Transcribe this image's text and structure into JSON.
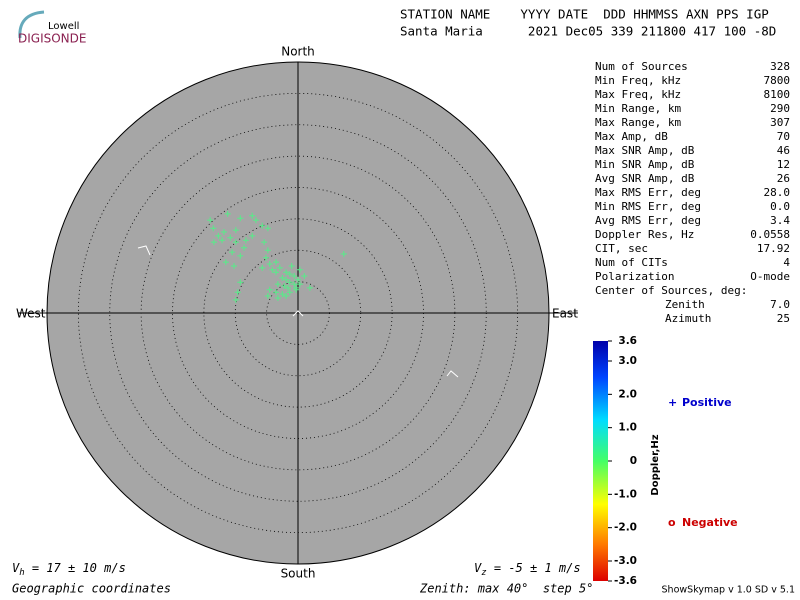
{
  "logo": {
    "top": "Lowell",
    "bottom": "DIGISONDE"
  },
  "header": {
    "line1": "STATION NAME    YYYY DATE  DDD HHMMSS AXN PPS IGP",
    "line2": "Santa Maria      2021 Dec05 339 211800 417 100 -8D"
  },
  "stats": {
    "rows": [
      [
        "Num of Sources",
        "328"
      ],
      [
        "Min Freq, kHz",
        "7800"
      ],
      [
        "Max Freq, kHz",
        "8100"
      ],
      [
        "Min Range, km",
        "290"
      ],
      [
        "Max Range, km",
        "307"
      ],
      [
        "Max Amp, dB",
        "70"
      ],
      [
        "Max SNR Amp, dB",
        "46"
      ],
      [
        "Min SNR Amp, dB",
        "12"
      ],
      [
        "Avg SNR Amp, dB",
        "26"
      ],
      [
        "Max RMS Err, deg",
        "28.0"
      ],
      [
        "Min RMS Err, deg",
        "0.0"
      ],
      [
        "Avg RMS Err, deg",
        "3.4"
      ],
      [
        "Doppler Res, Hz",
        "0.0558"
      ],
      [
        "CIT, sec",
        "17.92"
      ],
      [
        "Num of CITs",
        "4"
      ],
      [
        "Polarization",
        "O-mode"
      ]
    ],
    "center_title": "Center of Sources, deg:",
    "center_rows": [
      [
        "Zenith",
        "7.0"
      ],
      [
        "Azimuth",
        "25"
      ]
    ]
  },
  "chart_data": {
    "type": "scatter",
    "color": "#55ee88",
    "directions": {
      "north": "North",
      "south": "South",
      "east": "East",
      "west": "West"
    },
    "xlim": [
      -40,
      40
    ],
    "ylim": [
      -40,
      40
    ],
    "rticks": [
      5,
      10,
      15,
      20,
      25,
      30,
      35,
      40
    ],
    "x": [
      -14.0,
      -11.2,
      -9.2,
      -7.3,
      -6.7,
      -5.7,
      -4.8,
      -13.5,
      -12.7,
      -12.1,
      -10.8,
      -9.9,
      -8.3,
      -7.3,
      -13.4,
      -11.8,
      -9.9,
      -8.6,
      -10.5,
      -9.2,
      -11.5,
      -10.2,
      -5.4,
      -4.8,
      -5.1,
      -4.5,
      -3.5,
      -5.7,
      -4.1,
      -2.9,
      -1.9,
      -1.3,
      -0.6,
      -2.5,
      -1.9,
      -1.3,
      -0.6,
      0.0,
      -3.2,
      -2.2,
      -1.6,
      -0.3,
      -4.5,
      -3.5,
      -2.5,
      -1.3,
      -4.8,
      -3.2,
      -1.9,
      1.9,
      1.0,
      7.3,
      -9.6,
      -9.9,
      -9.2,
      0.3,
      -1.0,
      -0.3,
      0.3,
      -3.5
    ],
    "values": [
      14.8,
      15.8,
      15.1,
      15.5,
      14.8,
      13.9,
      13.5,
      13.5,
      12.3,
      11.6,
      12.0,
      11.3,
      11.6,
      12.3,
      11.3,
      12.9,
      13.2,
      10.4,
      9.7,
      9.1,
      8.1,
      7.5,
      11.3,
      10.0,
      8.8,
      7.8,
      8.1,
      7.2,
      6.9,
      7.2,
      6.5,
      6.2,
      5.9,
      5.6,
      5.3,
      4.9,
      4.6,
      5.3,
      4.6,
      4.3,
      4.0,
      4.0,
      3.7,
      3.3,
      3.0,
      3.3,
      2.7,
      2.4,
      2.7,
      4.0,
      5.9,
      9.4,
      3.3,
      2.1,
      4.9,
      6.9,
      7.5,
      3.7,
      4.6,
      6.5
    ],
    "colorbar": {
      "label": "Doppler,Hz",
      "clim": [
        -3.6,
        3.6
      ],
      "ticks": [
        3.6,
        {
          "value": 3,
          "label": "3.0"
        },
        {
          "value": 2,
          "label": "2.0"
        },
        {
          "value": 1,
          "label": "1.0"
        },
        0,
        {
          "value": -1,
          "label": "-1.0"
        },
        {
          "value": -2,
          "label": "-2.0"
        },
        {
          "value": -3,
          "label": "-3.0"
        },
        -3.6
      ]
    },
    "legend": {
      "positive_symbol": "+",
      "positive": "Positive",
      "negative_symbol": "o",
      "negative": "Negative"
    }
  },
  "footer": {
    "vh_v": "V",
    "vh_sub": "h",
    "vh_text": " = 17 ± 10 m/s",
    "vz_v": "V",
    "vz_sub": "z",
    "vz_text": " = -5 ± 1 m/s",
    "coords": "Geographic coordinates",
    "zenith": "Zenith: max 40°  step 5°",
    "version": "ShowSkymap v 1.0  SD v 5.1"
  }
}
